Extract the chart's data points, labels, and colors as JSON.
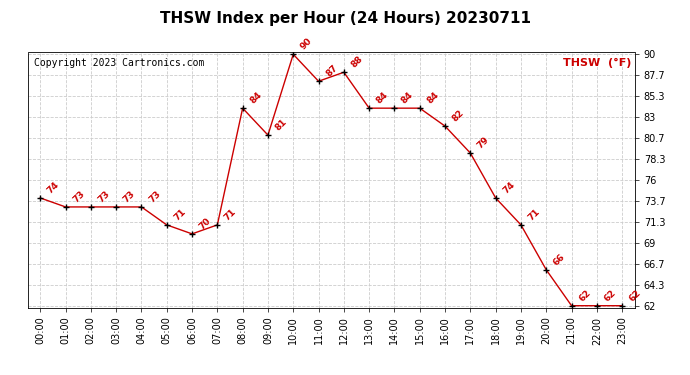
{
  "title": "THSW Index per Hour (24 Hours) 20230711",
  "copyright": "Copyright 2023 Cartronics.com",
  "legend_label": "THSW  (°F)",
  "hours": [
    0,
    1,
    2,
    3,
    4,
    5,
    6,
    7,
    8,
    9,
    10,
    11,
    12,
    13,
    14,
    15,
    16,
    17,
    18,
    19,
    20,
    21,
    22,
    23
  ],
  "hour_labels": [
    "00:00",
    "01:00",
    "02:00",
    "03:00",
    "04:00",
    "05:00",
    "06:00",
    "07:00",
    "08:00",
    "09:00",
    "10:00",
    "11:00",
    "12:00",
    "13:00",
    "14:00",
    "15:00",
    "16:00",
    "17:00",
    "18:00",
    "19:00",
    "20:00",
    "21:00",
    "22:00",
    "23:00"
  ],
  "values": [
    74,
    73,
    73,
    73,
    73,
    71,
    70,
    71,
    84,
    81,
    90,
    87,
    88,
    84,
    84,
    84,
    82,
    79,
    74,
    71,
    66,
    62,
    62,
    62
  ],
  "ylim_min": 62.0,
  "ylim_max": 90.0,
  "yticks": [
    62.0,
    64.3,
    66.7,
    69.0,
    71.3,
    73.7,
    76.0,
    78.3,
    80.7,
    83.0,
    85.3,
    87.7,
    90.0
  ],
  "line_color": "#cc0000",
  "marker_color": "#000000",
  "label_color": "#cc0000",
  "title_color": "#000000",
  "copyright_color": "#000000",
  "legend_color": "#cc0000",
  "grid_color": "#cccccc",
  "bg_color": "#ffffff",
  "title_fontsize": 11,
  "copyright_fontsize": 7,
  "label_fontsize": 6.5,
  "legend_fontsize": 8,
  "tick_fontsize": 7
}
